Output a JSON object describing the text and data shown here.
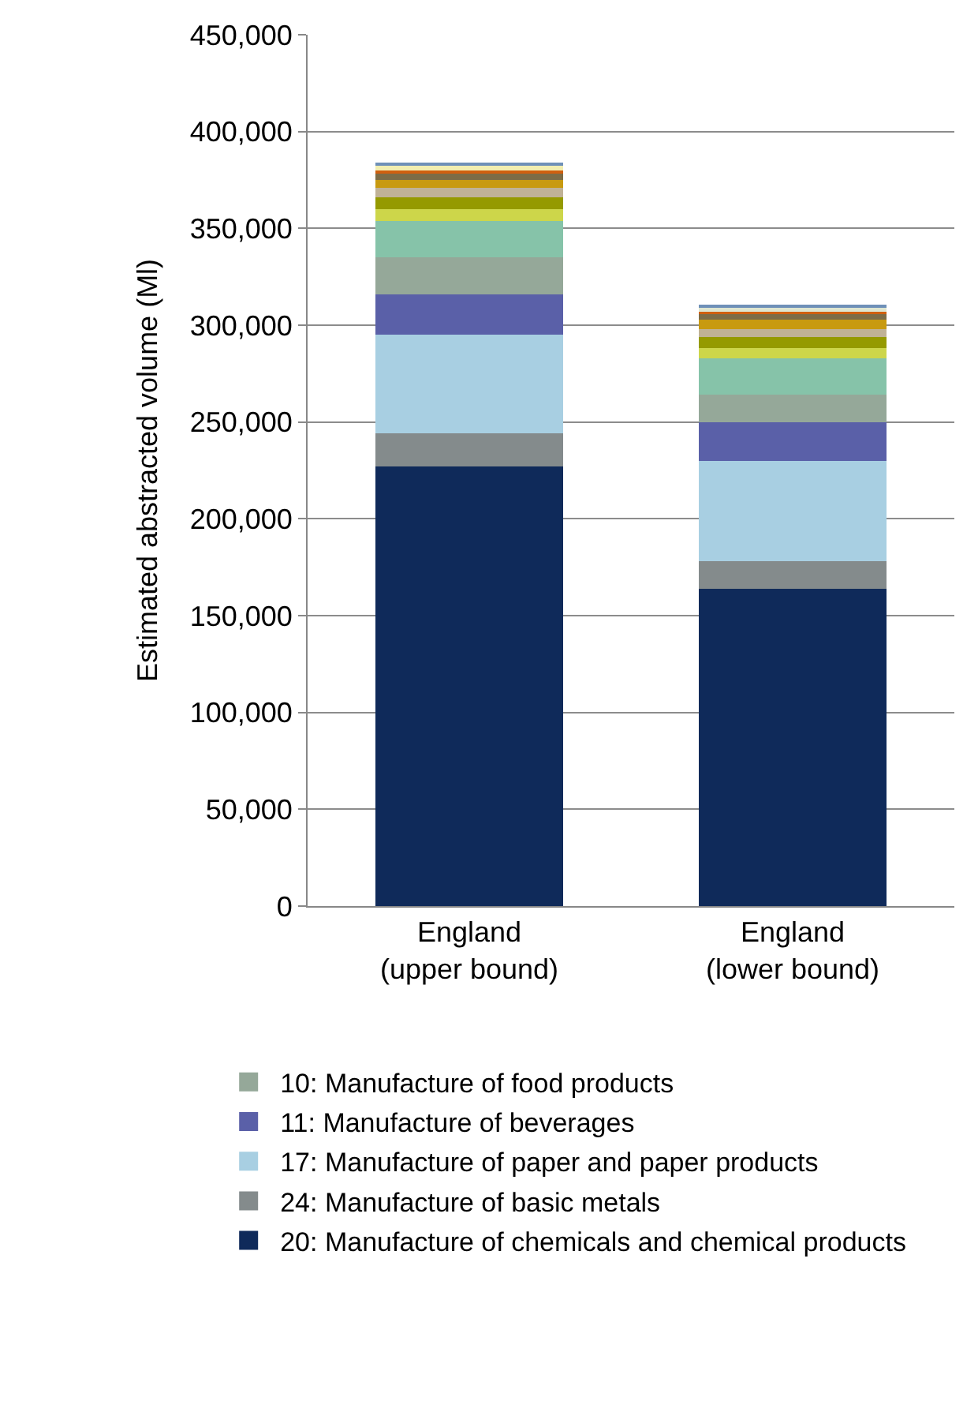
{
  "chart_data": {
    "type": "bar",
    "stacked": true,
    "ylabel": "Estimated abstracted volume (Ml)",
    "categories": [
      "England (upper bound)",
      "England (lower bound)"
    ],
    "series": [
      {
        "name": "20: Manufacture of chemicals and chemical products",
        "color": "#0f2a5a",
        "values": [
          227000,
          164000
        ]
      },
      {
        "name": "24: Manufacture of basic metals",
        "color": "#848b8c",
        "values": [
          17000,
          14000
        ]
      },
      {
        "name": "17: Manufacture of paper and paper products",
        "color": "#a8cfe2",
        "values": [
          51000,
          52000
        ]
      },
      {
        "name": "11: Manufacture of beverages",
        "color": "#5a60a8",
        "values": [
          21000,
          20000
        ]
      },
      {
        "name": "10: Manufacture of food products",
        "color": "#95a899",
        "values": [
          19000,
          14000
        ]
      },
      {
        "color": "#86c3a9",
        "values": [
          19000,
          19000
        ]
      },
      {
        "color": "#cdd64a",
        "values": [
          6000,
          5000
        ]
      },
      {
        "color": "#959a00",
        "values": [
          6000,
          6000
        ]
      },
      {
        "color": "#c0b296",
        "values": [
          5000,
          4000
        ]
      },
      {
        "color": "#c89a10",
        "values": [
          4000,
          5000
        ]
      },
      {
        "color": "#7d6c46",
        "values": [
          4000,
          3000
        ]
      },
      {
        "color": "#d06010",
        "values": [
          1000,
          1000
        ]
      },
      {
        "color": "#f2eeb0",
        "values": [
          3000,
          null
        ]
      },
      {
        "color": "#dfe6d0",
        "values": [
          null,
          2000
        ]
      },
      {
        "color": "#6f90b8",
        "values": [
          1000,
          1000
        ]
      }
    ],
    "ylim": [
      0,
      450000
    ],
    "yticks": [
      0,
      {
        "value": 50000,
        "label": "50,000"
      },
      {
        "value": 100000,
        "label": "100,000"
      },
      {
        "value": 150000,
        "label": "150,000"
      },
      {
        "value": 200000,
        "label": "200,000"
      },
      {
        "value": 250000,
        "label": "250,000"
      },
      {
        "value": 300000,
        "label": "300,000"
      },
      {
        "value": 350000,
        "label": "350,000"
      },
      {
        "value": 400000,
        "label": "400,000"
      },
      {
        "value": 450000,
        "label": "450,000"
      }
    ],
    "grid": "y",
    "legend": "bottom"
  }
}
